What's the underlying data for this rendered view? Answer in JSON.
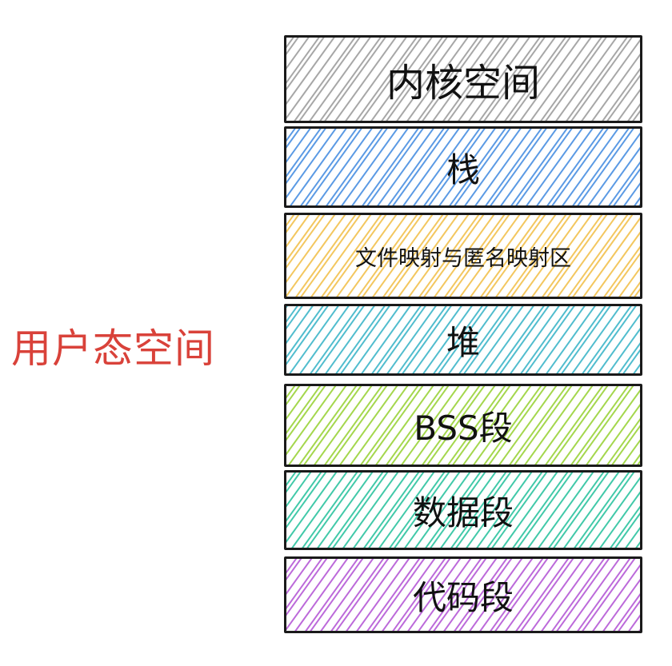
{
  "side_label": "用户态空间",
  "colors": {
    "side_label": "#d9423a",
    "border": "#1a1a1a"
  },
  "segments": [
    {
      "label": "内核空间",
      "hatch_color": "#9e9e9e"
    },
    {
      "label": "栈",
      "hatch_color": "#4a90e2"
    },
    {
      "label": "文件映射与匿名映射区",
      "hatch_color": "#f2c14e"
    },
    {
      "label": "堆",
      "hatch_color": "#3fb6c9"
    },
    {
      "label": "BSS段",
      "hatch_color": "#9bd33a"
    },
    {
      "label": "数据段",
      "hatch_color": "#2ec4a0"
    },
    {
      "label": "代码段",
      "hatch_color": "#b55ad6"
    }
  ]
}
